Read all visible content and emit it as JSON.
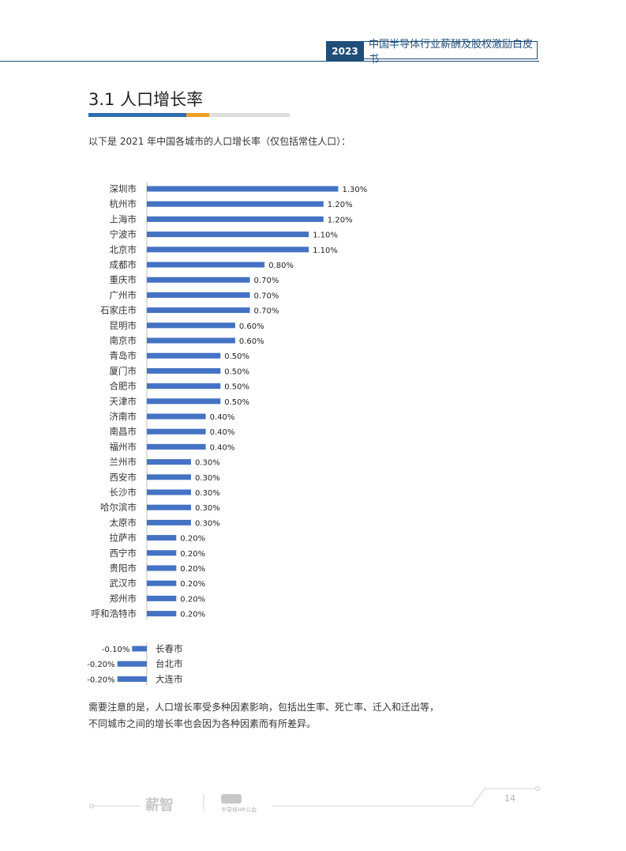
{
  "header": {
    "year": "2023",
    "title": "中国半导体行业薪酬及股权激励白皮书"
  },
  "section": {
    "title": "3.1 人口增长率"
  },
  "intro": "以下是 2021 年中国各城市的人口增长率（仅包括常住人口）：",
  "note": {
    "line1": "需要注意的是，人口增长率受多种因素影响，包括出生率、死亡率、迁入和迁出等，",
    "line2": "不同城市之间的增长率也会因为各种因素而有所差异。"
  },
  "footer": {
    "logo": "薪智",
    "logo_sub": "半导体HR公会",
    "page": "14"
  },
  "colors": {
    "bar": "#4472c4",
    "accent_blue": "#2e6cae",
    "accent_orange": "#f0a023",
    "header": "#1f4e79"
  },
  "chart_data": {
    "type": "bar",
    "orientation": "horizontal",
    "title": "",
    "xlabel": "",
    "ylabel": "",
    "unit": "%",
    "categories": [
      "深圳市",
      "杭州市",
      "上海市",
      "宁波市",
      "北京市",
      "成都市",
      "重庆市",
      "广州市",
      "石家庄市",
      "昆明市",
      "南京市",
      "青岛市",
      "厦门市",
      "合肥市",
      "天津市",
      "济南市",
      "南昌市",
      "福州市",
      "兰州市",
      "西安市",
      "长沙市",
      "哈尔滨市",
      "太原市",
      "拉萨市",
      "西宁市",
      "贵阳市",
      "武汉市",
      "郑州市",
      "呼和浩特市",
      "长春市",
      "台北市",
      "大连市"
    ],
    "values": [
      1.3,
      1.2,
      1.2,
      1.1,
      1.1,
      0.8,
      0.7,
      0.7,
      0.7,
      0.6,
      0.6,
      0.5,
      0.5,
      0.5,
      0.5,
      0.4,
      0.4,
      0.4,
      0.3,
      0.3,
      0.3,
      0.3,
      0.3,
      0.2,
      0.2,
      0.2,
      0.2,
      0.2,
      0.2,
      -0.1,
      -0.2,
      -0.2
    ],
    "labels": [
      "1.30%",
      "1.20%",
      "1.20%",
      "1.10%",
      "1.10%",
      "0.80%",
      "0.70%",
      "0.70%",
      "0.70%",
      "0.60%",
      "0.60%",
      "0.50%",
      "0.50%",
      "0.50%",
      "0.50%",
      "0.40%",
      "0.40%",
      "0.40%",
      "0.30%",
      "0.30%",
      "0.30%",
      "0.30%",
      "0.30%",
      "0.20%",
      "0.20%",
      "0.20%",
      "0.20%",
      "0.20%",
      "0.20%",
      "-0.10%",
      "-0.20%",
      "-0.20%"
    ],
    "grid": false,
    "legend": "none"
  }
}
